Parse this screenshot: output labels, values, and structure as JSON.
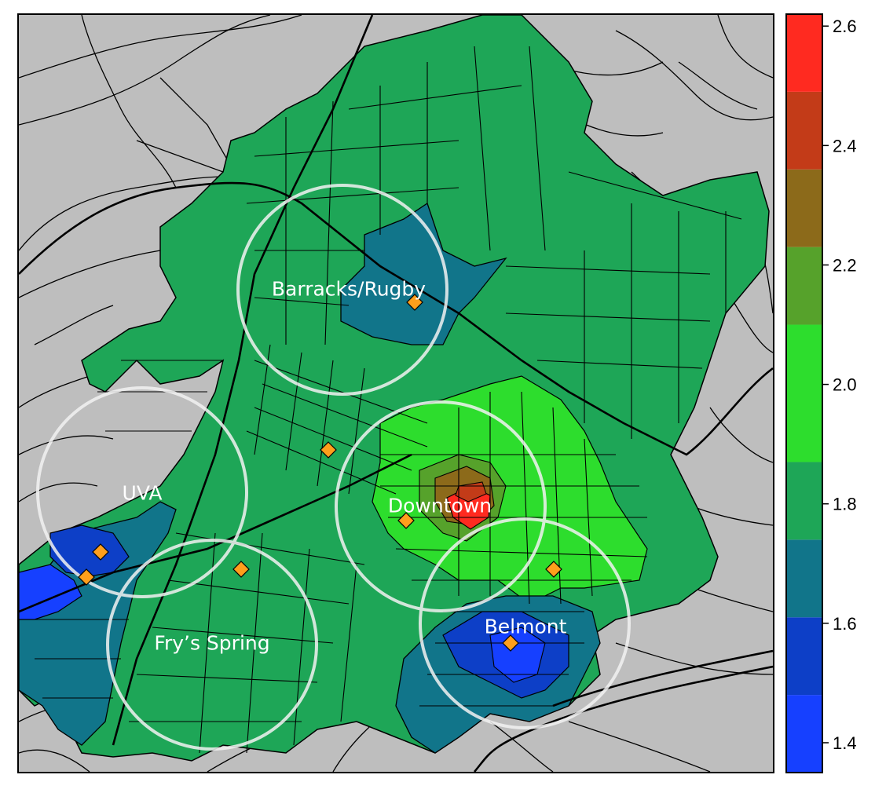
{
  "map": {
    "background_color": "#bebebe",
    "neighborhoods": [
      {
        "label": "Barracks/Rugby",
        "color_value": 1.65
      },
      {
        "label": "UVA",
        "color_value": 1.55
      },
      {
        "label": "Fry’s Spring",
        "color_value": 1.75
      },
      {
        "label": "Downtown",
        "color_value": 2.55
      },
      {
        "label": "Belmont",
        "color_value": 1.5
      }
    ],
    "marker_color": "#ff9f1c",
    "circle_color": "#f2f2f2"
  },
  "legend": {
    "ticks": [
      "1.4",
      "1.6",
      "1.8",
      "2.0",
      "2.2",
      "2.4",
      "2.6"
    ],
    "tick_values": [
      1.4,
      1.6,
      1.8,
      2.0,
      2.2,
      2.4,
      2.6
    ],
    "range": [
      1.35,
      2.62
    ],
    "bins": [
      {
        "from": 1.35,
        "to": 1.48,
        "color": "#1640ff"
      },
      {
        "from": 1.48,
        "to": 1.61,
        "color": "#0d3fc7"
      },
      {
        "from": 1.61,
        "to": 1.74,
        "color": "#11758a"
      },
      {
        "from": 1.74,
        "to": 1.87,
        "color": "#1ea657"
      },
      {
        "from": 1.87,
        "to": 2.1,
        "color": "#2ddd2d"
      },
      {
        "from": 2.1,
        "to": 2.23,
        "color": "#56a22b"
      },
      {
        "from": 2.23,
        "to": 2.36,
        "color": "#8c6a1a"
      },
      {
        "from": 2.36,
        "to": 2.49,
        "color": "#c33b18"
      },
      {
        "from": 2.49,
        "to": 2.62,
        "color": "#ff2a20"
      }
    ]
  }
}
